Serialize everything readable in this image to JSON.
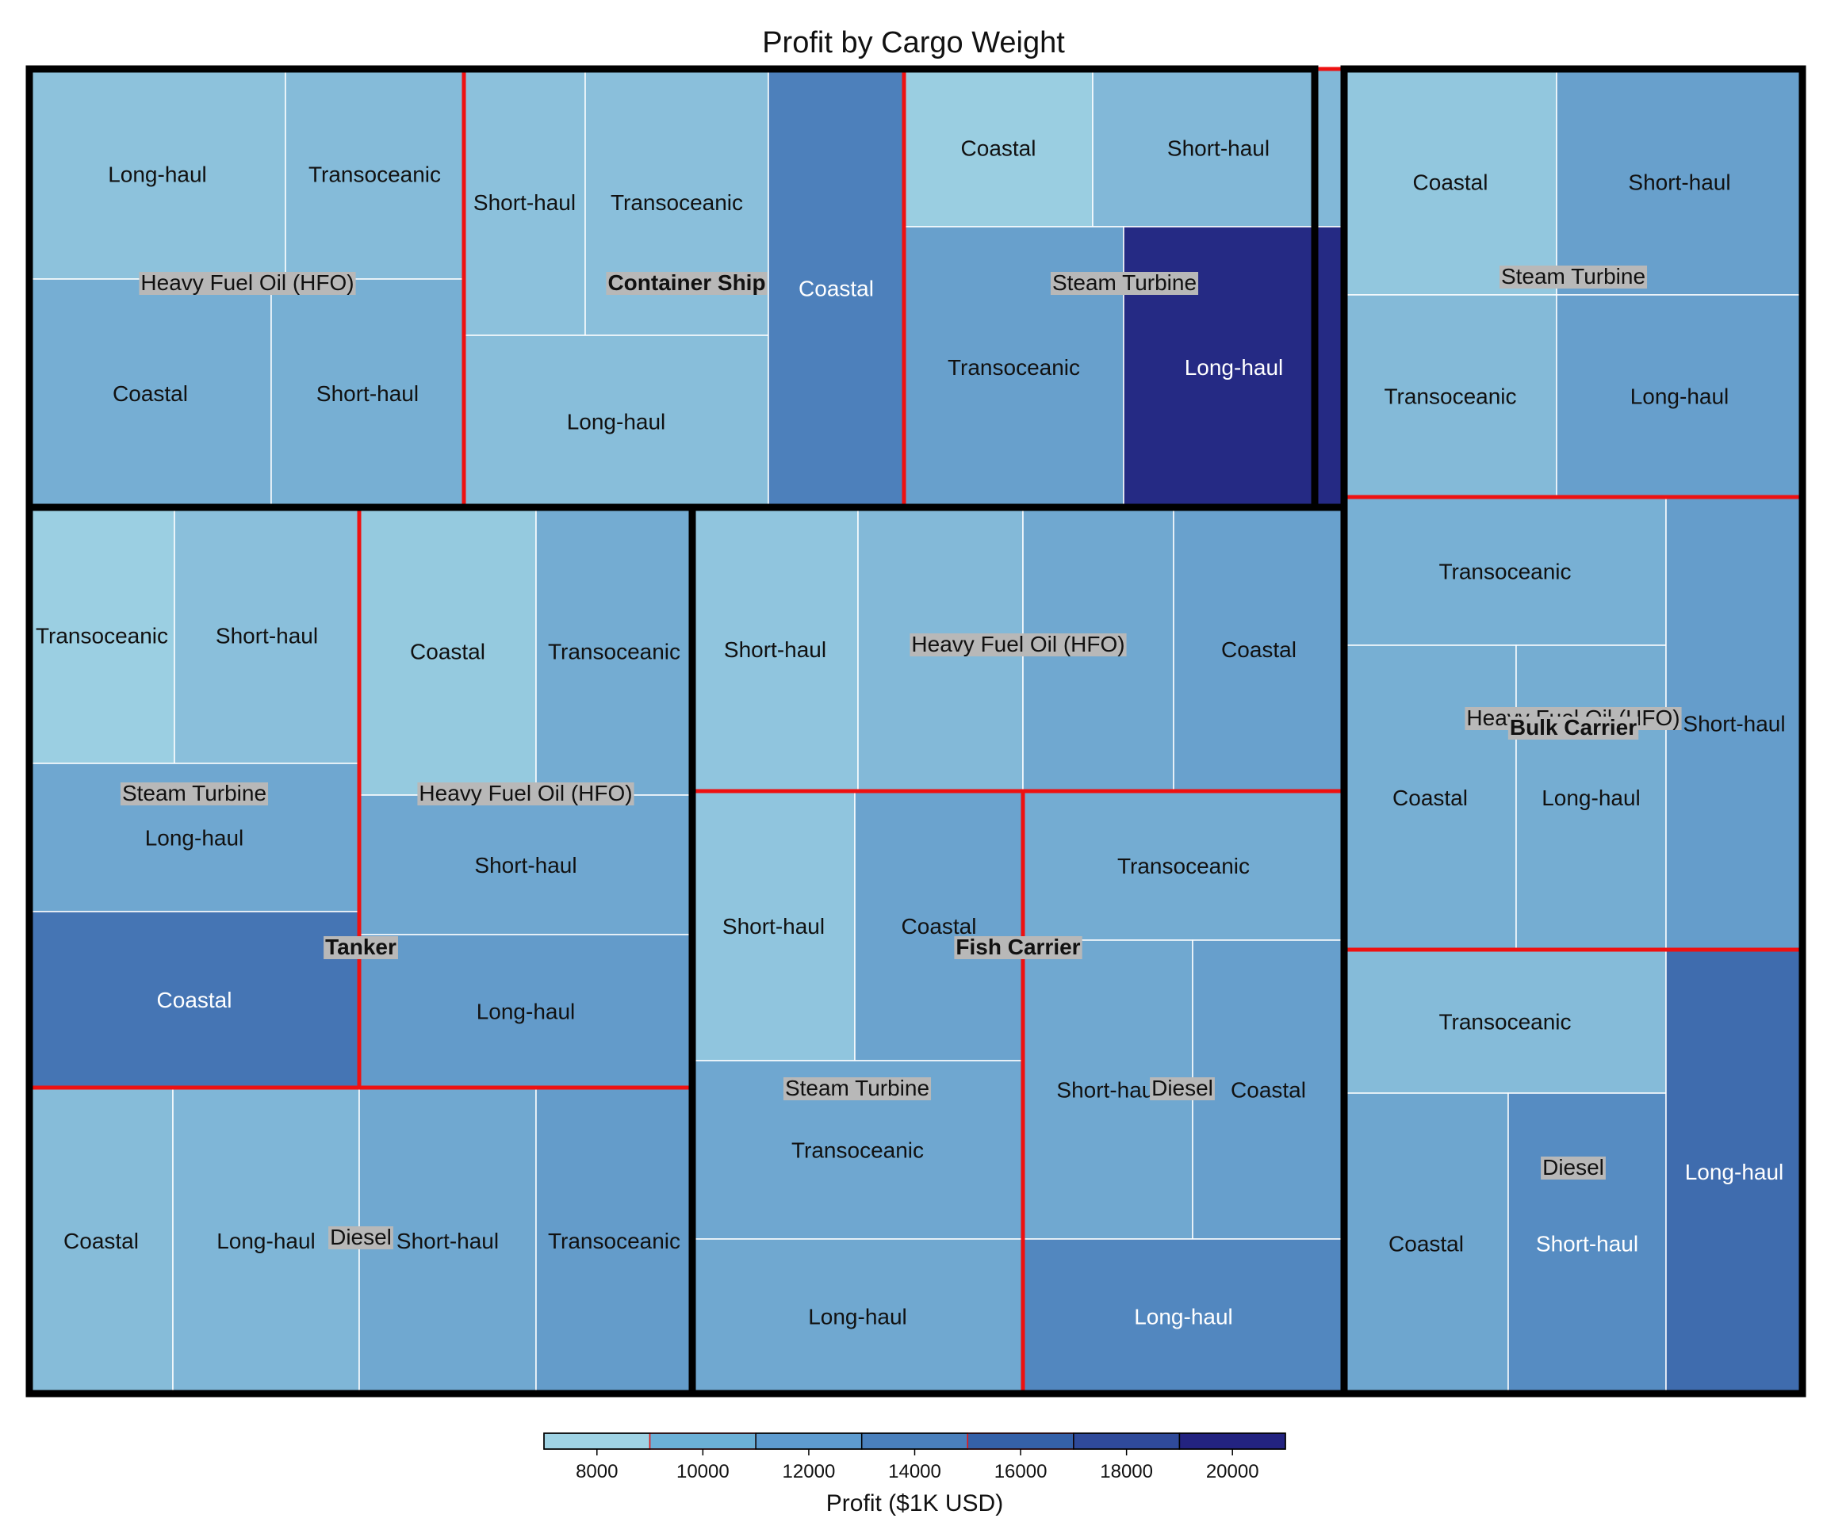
{
  "chart_data": {
    "type": "treemap",
    "title": "Profit by Cargo Weight",
    "colorbar": {
      "title": "Profit ($1K USD)",
      "ticks": [
        8000,
        10000,
        12000,
        14000,
        16000,
        18000,
        20000
      ],
      "range": [
        7000,
        21000
      ],
      "colors": [
        "#9fd3e4",
        "#6cb0d6",
        "#5e9cd0",
        "#4a80bc",
        "#3561a8",
        "#2f4a9a",
        "#232380"
      ]
    },
    "vessels": [
      {
        "name": "Container Ship",
        "groups": [
          {
            "name": "Heavy Fuel Oil (HFO)",
            "cells": [
              {
                "route": "Long-haul",
                "profit": 9500
              },
              {
                "route": "Transoceanic",
                "profit": 10200
              },
              {
                "route": "Coastal",
                "profit": 11500
              },
              {
                "route": "Short-haul",
                "profit": 11400
              }
            ]
          },
          {
            "name": "",
            "cells": [
              {
                "route": "Short-haul",
                "profit": 9600
              },
              {
                "route": "Transoceanic",
                "profit": 9800
              },
              {
                "route": "Long-haul",
                "profit": 9900
              },
              {
                "route": "Coastal",
                "profit": 15600
              }
            ]
          },
          {
            "name": "Steam Turbine",
            "cells": [
              {
                "route": "Coastal",
                "profit": 8200
              },
              {
                "route": "Short-haul",
                "profit": 10500
              },
              {
                "route": "Transoceanic",
                "profit": 12800
              },
              {
                "route": "Long-haul",
                "profit": 20700
              }
            ]
          }
        ]
      },
      {
        "name": "Bulk Carrier",
        "groups": [
          {
            "name": "Steam Turbine",
            "cells": [
              {
                "route": "Coastal",
                "profit": 9000
              },
              {
                "route": "Short-haul",
                "profit": 12800
              },
              {
                "route": "Transoceanic",
                "profit": 10300
              },
              {
                "route": "Long-haul",
                "profit": 12900
              }
            ]
          },
          {
            "name": "Heavy Fuel Oil (HFO)",
            "cells": [
              {
                "route": "Transoceanic",
                "profit": 11300
              },
              {
                "route": "Coastal",
                "profit": 11400
              },
              {
                "route": "Long-haul",
                "profit": 11600
              },
              {
                "route": "Short-haul",
                "profit": 13100
              }
            ]
          },
          {
            "name": "Diesel",
            "cells": [
              {
                "route": "Transoceanic",
                "profit": 10200
              },
              {
                "route": "Coastal",
                "profit": 12200
              },
              {
                "route": "Short-haul",
                "profit": 14600
              },
              {
                "route": "Long-haul",
                "profit": 17200
              }
            ]
          }
        ]
      },
      {
        "name": "Tanker",
        "groups": [
          {
            "name": "Steam Turbine",
            "cells": [
              {
                "route": "Transoceanic",
                "profit": 8100
              },
              {
                "route": "Short-haul",
                "profit": 9800
              },
              {
                "route": "Long-haul",
                "profit": 12100
              },
              {
                "route": "Coastal",
                "profit": 16500
              }
            ]
          },
          {
            "name": "Heavy Fuel Oil (HFO)",
            "cells": [
              {
                "route": "Coastal",
                "profit": 8700
              },
              {
                "route": "Transoceanic",
                "profit": 11700
              },
              {
                "route": "Short-haul",
                "profit": 12100
              },
              {
                "route": "Long-haul",
                "profit": 13300
              }
            ]
          },
          {
            "name": "Diesel",
            "cells": [
              {
                "route": "Coastal",
                "profit": 10100
              },
              {
                "route": "Long-haul",
                "profit": 10700
              },
              {
                "route": "Short-haul",
                "profit": 12000
              },
              {
                "route": "Transoceanic",
                "profit": 13200
              }
            ]
          }
        ]
      },
      {
        "name": "Fish Carrier",
        "groups": [
          {
            "name": "Heavy Fuel Oil (HFO)",
            "cells": [
              {
                "route": "Short-haul",
                "profit": 9200
              },
              {
                "route": "",
                "profit": 10400
              },
              {
                "route": "",
                "profit": 12000
              },
              {
                "route": "Coastal",
                "profit": 12700
              }
            ]
          },
          {
            "name": "Steam Turbine",
            "cells": [
              {
                "route": "Short-haul",
                "profit": 9200
              },
              {
                "route": "Coastal",
                "profit": 12500
              },
              {
                "route": "Transoceanic",
                "profit": 12100
              },
              {
                "route": "Long-haul",
                "profit": 12000
              }
            ]
          },
          {
            "name": "Diesel",
            "cells": [
              {
                "route": "Transoceanic",
                "profit": 11700
              },
              {
                "route": "Short-haul",
                "profit": 12000
              },
              {
                "route": "Coastal",
                "profit": 12900
              },
              {
                "route": "Long-haul",
                "profit": 15000
              }
            ]
          }
        ]
      }
    ]
  }
}
